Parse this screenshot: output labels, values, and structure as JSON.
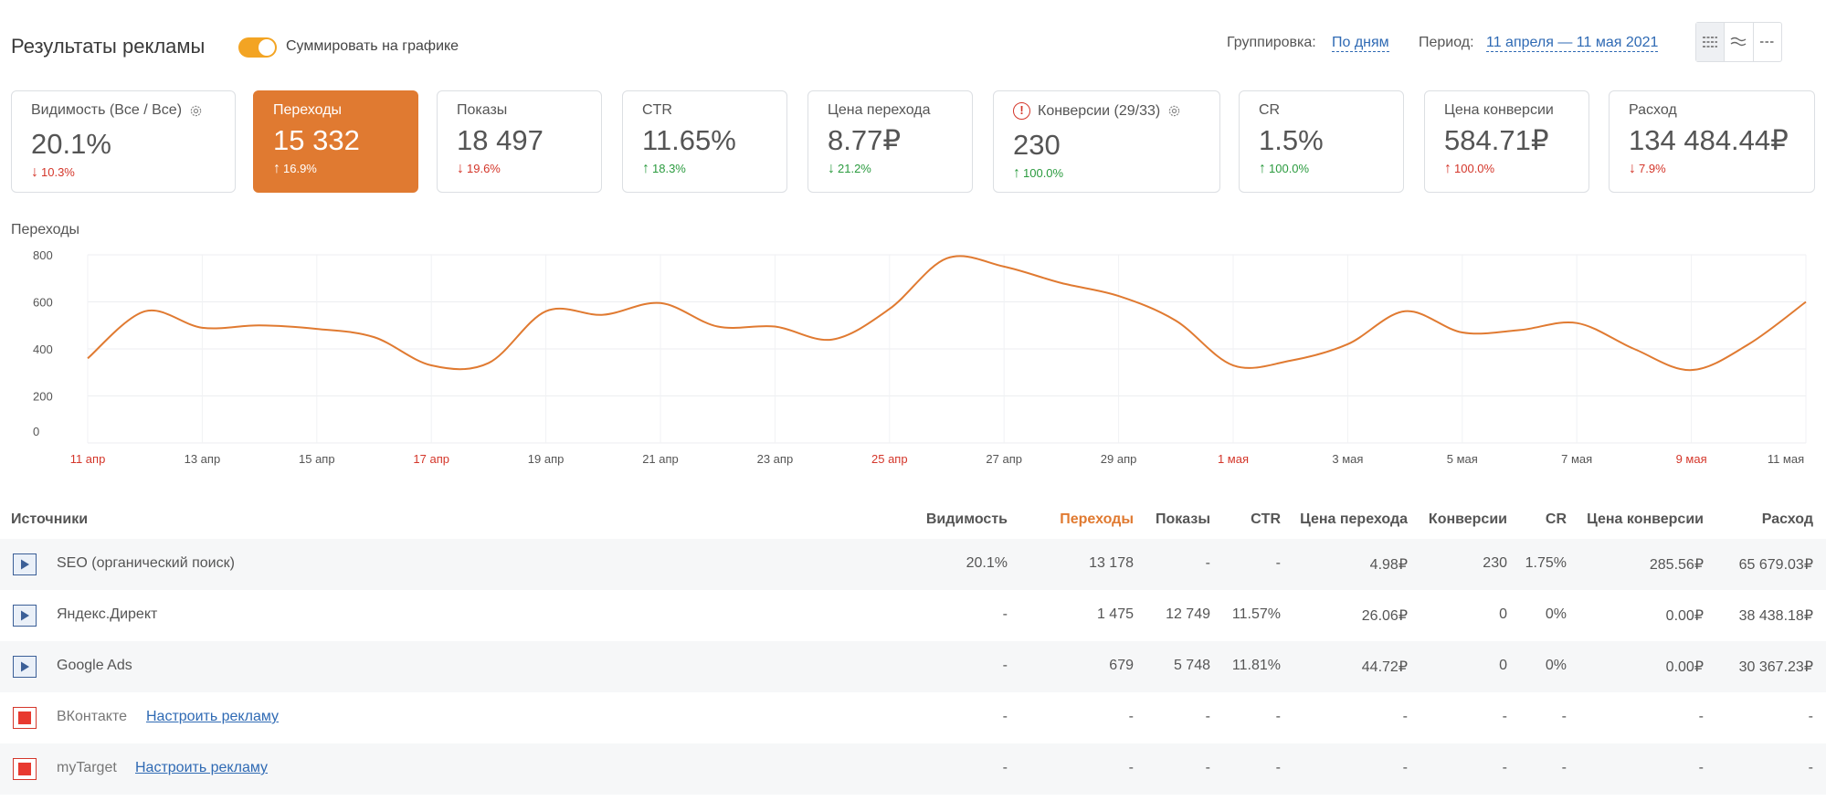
{
  "header": {
    "title": "Результаты рекламы",
    "toggle_label": "Суммировать на графике",
    "grouping_label": "Группировка:",
    "grouping_value": "По дням",
    "period_label": "Период:",
    "period_value": "11 апреля — 11 мая 2021",
    "view_icons": [
      "stacked-lines-icon",
      "wave-lines-icon",
      "dashed-lines-icon"
    ]
  },
  "cards": [
    {
      "label": "Видимость (Все / Все)",
      "value": "20.1%",
      "delta": "10.3%",
      "direction": "down",
      "icon": "gear-icon"
    },
    {
      "label": "Переходы",
      "value": "15 332",
      "delta": "16.9%",
      "direction": "up",
      "active": true
    },
    {
      "label": "Показы",
      "value": "18 497",
      "delta": "19.6%",
      "direction": "down"
    },
    {
      "label": "CTR",
      "value": "11.65%",
      "delta": "18.3%",
      "direction": "up"
    },
    {
      "label": "Цена перехода",
      "value": "8.77₽",
      "delta": "21.2%",
      "direction": "down-good"
    },
    {
      "label": "Конверсии (29/33)",
      "value": "230",
      "delta": "100.0%",
      "direction": "up",
      "icon": "warning-icon",
      "icon2": "gear-icon"
    },
    {
      "label": "CR",
      "value": "1.5%",
      "delta": "100.0%",
      "direction": "up"
    },
    {
      "label": "Цена конверсии",
      "value": "584.71₽",
      "delta": "100.0%",
      "direction": "up-bad"
    },
    {
      "label": "Расход",
      "value": "134 484.44₽",
      "delta": "7.9%",
      "direction": "down"
    }
  ],
  "chart_title": "Переходы",
  "chart_data": {
    "type": "line",
    "title": "Переходы",
    "xlabel": "",
    "ylabel": "",
    "ylim": [
      0,
      800
    ],
    "yticks": [
      "0",
      "200",
      "400",
      "600",
      "800"
    ],
    "x": [
      "11 апр",
      "12 апр",
      "13 апр",
      "14 апр",
      "15 апр",
      "16 апр",
      "17 апр",
      "18 апр",
      "19 апр",
      "20 апр",
      "21 апр",
      "22 апр",
      "23 апр",
      "24 апр",
      "25 апр",
      "26 апр",
      "27 апр",
      "28 апр",
      "29 апр",
      "30 апр",
      "1 мая",
      "2 мая",
      "3 мая",
      "4 мая",
      "5 мая",
      "6 мая",
      "7 мая",
      "8 мая",
      "9 мая",
      "10 мая",
      "11 мая"
    ],
    "xtick_labels": [
      "11 апр",
      "13 апр",
      "15 апр",
      "17 апр",
      "19 апр",
      "21 апр",
      "23 апр",
      "25 апр",
      "27 апр",
      "29 апр",
      "1 мая",
      "3 мая",
      "5 мая",
      "7 мая",
      "9 мая",
      "11 мая"
    ],
    "weekend_ticks": [
      "11 апр",
      "17 апр",
      "25 апр",
      "1 мая",
      "9 мая"
    ],
    "series": [
      {
        "values": [
          360,
          560,
          490,
          500,
          485,
          450,
          330,
          340,
          560,
          545,
          595,
          495,
          495,
          440,
          570,
          785,
          750,
          680,
          625,
          520,
          330,
          350,
          420,
          560,
          470,
          480,
          510,
          400,
          310,
          420,
          600
        ]
      }
    ],
    "grid": true,
    "color": "#e07a31"
  },
  "table": {
    "headers": [
      "Источники",
      "Видимость",
      "Переходы",
      "Показы",
      "CTR",
      "Цена перехода",
      "Конверсии",
      "CR",
      "Цена конверсии",
      "Расход"
    ],
    "rows": [
      {
        "name": "SEO (органический поиск)",
        "state": "play",
        "link": "",
        "cells": [
          "20.1%",
          "13 178",
          "-",
          "-",
          "4.98₽",
          "230",
          "1.75%",
          "285.56₽",
          "65 679.03₽"
        ]
      },
      {
        "name": "Яндекс.Директ",
        "state": "play",
        "link": "",
        "cells": [
          "-",
          "1 475",
          "12 749",
          "11.57%",
          "26.06₽",
          "0",
          "0%",
          "0.00₽",
          "38 438.18₽"
        ]
      },
      {
        "name": "Google Ads",
        "state": "play",
        "link": "",
        "cells": [
          "-",
          "679",
          "5 748",
          "11.81%",
          "44.72₽",
          "0",
          "0%",
          "0.00₽",
          "30 367.23₽"
        ]
      },
      {
        "name": "ВКонтакте",
        "state": "stop",
        "link": "Настроить рекламу",
        "cells": [
          "-",
          "-",
          "-",
          "-",
          "-",
          "-",
          "-",
          "-",
          "-"
        ]
      },
      {
        "name": "myTarget",
        "state": "stop",
        "link": "Настроить рекламу",
        "cells": [
          "-",
          "-",
          "-",
          "-",
          "-",
          "-",
          "-",
          "-",
          "-"
        ]
      }
    ]
  },
  "colors": {
    "accent": "#e07a31",
    "toggle": "#f3a423",
    "link": "#2f6ab4",
    "negative": "#d4362a",
    "positive": "#2b9b3f",
    "weekend_tick": "#d4362a"
  }
}
